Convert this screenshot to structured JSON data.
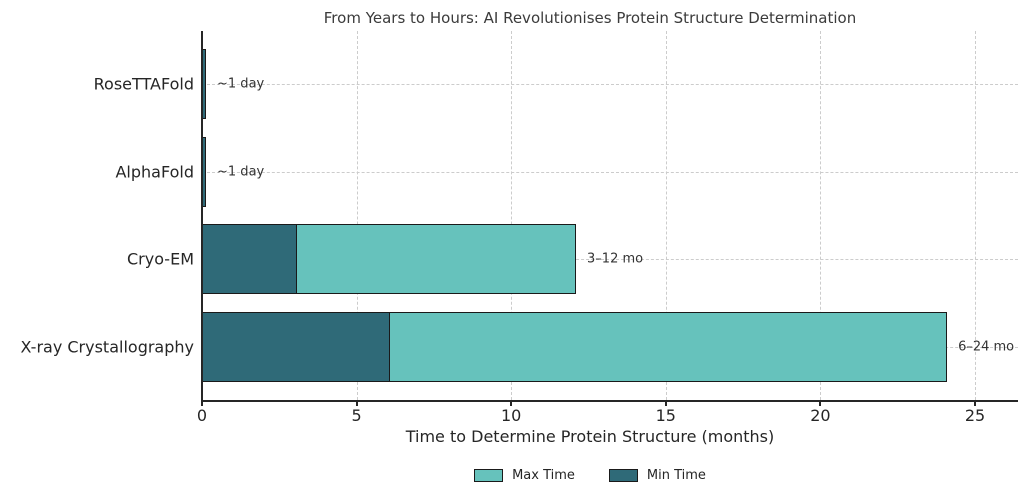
{
  "chart_data": {
    "type": "bar",
    "orientation": "horizontal",
    "stacked": true,
    "title": "From Years to Hours: AI Revolutionises Protein Structure Determination",
    "xlabel": "Time to Determine Protein Structure (months)",
    "ylabel": "",
    "categories": [
      "RoseTTAFold",
      "AlphaFold",
      "Cryo-EM",
      "X-ray Crystallography"
    ],
    "rows": [
      {
        "label": "RoseTTAFold",
        "min_months": 0.033,
        "max_months": 0.033,
        "annotation": "~1 day"
      },
      {
        "label": "AlphaFold",
        "min_months": 0.033,
        "max_months": 0.033,
        "annotation": "~1 day"
      },
      {
        "label": "Cryo-EM",
        "min_months": 3,
        "max_months": 12,
        "annotation": "3–12 mo"
      },
      {
        "label": "X-ray Crystallography",
        "min_months": 6,
        "max_months": 24,
        "annotation": "6–24 mo"
      }
    ],
    "series": [
      {
        "name": "Min Time",
        "color": "#2f6a78",
        "values": [
          0.033,
          0.033,
          3,
          6
        ]
      },
      {
        "name": "Max Time",
        "color": "#66c2bc",
        "values": [
          0.033,
          0.033,
          12,
          24
        ]
      }
    ],
    "xticks": [
      0,
      5,
      10,
      15,
      20,
      25
    ],
    "xlim": [
      0,
      26.4
    ],
    "grid": "dashed-both-axes",
    "legend_position": "bottom-center",
    "colors": {
      "min_time": "#2f6a78",
      "max_time": "#66c2bc",
      "bar_border": "#1a1a1a",
      "grid": "#cccccc",
      "axis": "#262626",
      "annotation_text": "#333333"
    }
  },
  "legend": {
    "items": [
      {
        "label": "Max Time",
        "color": "#66c2bc"
      },
      {
        "label": "Min Time",
        "color": "#2f6a78"
      }
    ]
  }
}
